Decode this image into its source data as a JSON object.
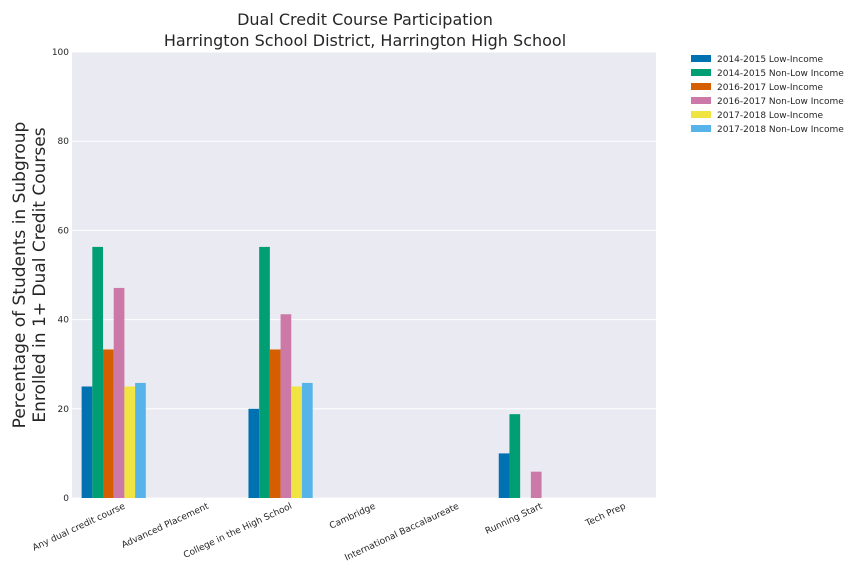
{
  "chart_data": {
    "type": "bar",
    "title": [
      "Dual Credit Course Participation",
      "Harrington School District, Harrington High School"
    ],
    "xlabel": "",
    "ylabel": [
      "Percentage of Students in Subgroup",
      "Enrolled in 1+ Dual Credit Courses"
    ],
    "ylim": [
      0,
      100
    ],
    "yticks": [
      0,
      20,
      40,
      60,
      80,
      100
    ],
    "grid": true,
    "legend_position": "outside-top-right",
    "categories": [
      "Any dual credit course",
      "Advanced Placement",
      "College in the High School",
      "Cambridge",
      "International Baccalaureate",
      "Running Start",
      "Tech Prep"
    ],
    "series": [
      {
        "name": "2014-2015 Low-Income",
        "color": "#0072b2",
        "values": [
          25,
          0,
          20,
          0,
          0,
          10,
          0
        ]
      },
      {
        "name": "2014-2015 Non-Low Income",
        "color": "#009e73",
        "values": [
          56.3,
          0,
          56.3,
          0,
          0,
          18.8,
          0
        ]
      },
      {
        "name": "2016-2017 Low-Income",
        "color": "#d55e00",
        "values": [
          33.3,
          0,
          33.3,
          0,
          0,
          0,
          0
        ]
      },
      {
        "name": "2016-2017 Non-Low Income",
        "color": "#cc79a7",
        "values": [
          47.1,
          0,
          41.2,
          0,
          0,
          5.9,
          0
        ]
      },
      {
        "name": "2017-2018 Low-Income",
        "color": "#f0e442",
        "values": [
          25,
          0,
          25,
          0,
          0,
          0,
          0
        ]
      },
      {
        "name": "2017-2018 Non-Low Income",
        "color": "#56b4e9",
        "values": [
          25.8,
          0,
          25.8,
          0,
          0,
          0,
          0
        ]
      }
    ]
  }
}
